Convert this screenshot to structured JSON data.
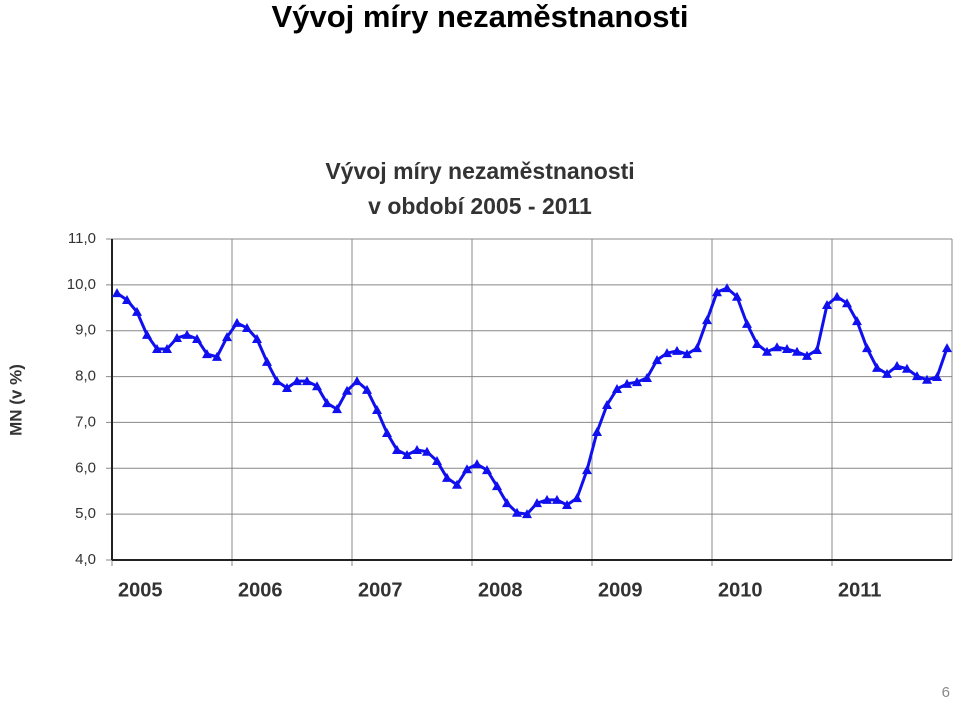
{
  "slide_title": "Vývoj míry nezaměstnanosti",
  "page_number": "6",
  "chart_data": {
    "type": "line",
    "title": [
      "Vývoj míry nezaměstnanosti",
      "v období 2005 - 2011"
    ],
    "y_label": "MN (v %)",
    "categories": [
      "2005",
      null,
      null,
      null,
      null,
      null,
      null,
      null,
      null,
      null,
      null,
      null,
      "2006",
      null,
      null,
      null,
      null,
      null,
      null,
      null,
      null,
      null,
      null,
      null,
      "2007",
      null,
      null,
      null,
      null,
      null,
      null,
      null,
      null,
      null,
      null,
      null,
      "2008",
      null,
      null,
      null,
      null,
      null,
      null,
      null,
      null,
      null,
      null,
      null,
      "2009",
      null,
      null,
      null,
      null,
      null,
      null,
      null,
      null,
      null,
      null,
      null,
      "2010",
      null,
      null,
      null,
      null,
      null,
      null,
      null,
      null,
      null,
      null,
      null,
      "2011",
      null,
      null,
      null,
      null,
      null,
      null,
      null,
      null,
      null,
      null,
      null
    ],
    "color": "#1010ee",
    "values": [
      9.82,
      9.67,
      9.41,
      8.91,
      8.6,
      8.6,
      8.84,
      8.91,
      8.82,
      8.49,
      8.43,
      8.86,
      9.17,
      9.06,
      8.82,
      8.32,
      7.9,
      7.75,
      7.9,
      7.9,
      7.79,
      7.42,
      7.29,
      7.69,
      7.9,
      7.71,
      7.27,
      6.77,
      6.4,
      6.29,
      6.4,
      6.36,
      6.16,
      5.79,
      5.64,
      5.98,
      6.09,
      5.96,
      5.61,
      5.24,
      5.03,
      5.0,
      5.24,
      5.31,
      5.31,
      5.2,
      5.35,
      5.96,
      6.79,
      7.38,
      7.73,
      7.84,
      7.88,
      7.97,
      8.36,
      8.51,
      8.56,
      8.49,
      8.62,
      9.23,
      9.84,
      9.93,
      9.74,
      9.15,
      8.71,
      8.54,
      8.64,
      8.6,
      8.54,
      8.45,
      8.58,
      9.56,
      9.74,
      9.6,
      9.21,
      8.62,
      8.19,
      8.06,
      8.23,
      8.17,
      8.01,
      7.93,
      7.99,
      8.62
    ],
    "ylim": [
      4,
      11
    ],
    "yticks": [
      {
        "value": 4,
        "label": "4,0"
      },
      {
        "value": 5,
        "label": "5,0"
      },
      {
        "value": 6,
        "label": "6,0"
      },
      {
        "value": 7,
        "label": "7,0"
      },
      {
        "value": 8,
        "label": "8,0"
      },
      {
        "value": 9,
        "label": "9,0"
      },
      {
        "value": 10,
        "label": "10,0"
      },
      {
        "value": 11,
        "label": "11,0"
      }
    ],
    "grid": true
  }
}
